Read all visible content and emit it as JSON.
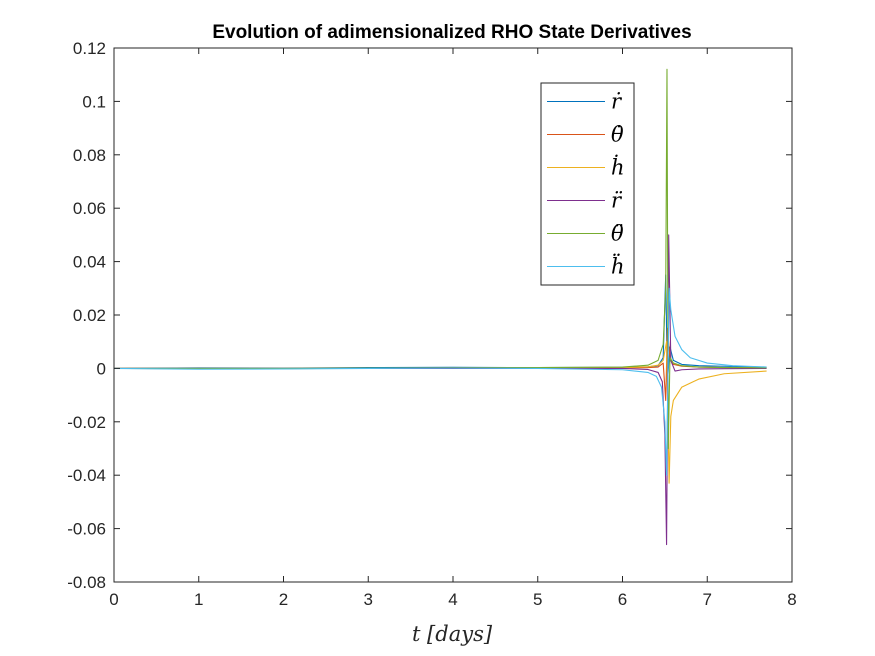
{
  "chart_data": {
    "type": "line",
    "title": "Evolution of adimensionalized RHO State Derivatives",
    "xlabel": "t [days]",
    "ylabel": "",
    "xlim": [
      0,
      8
    ],
    "ylim": [
      -0.08,
      0.12
    ],
    "xticks": [
      0,
      1,
      2,
      3,
      4,
      5,
      6,
      7,
      8
    ],
    "yticks": [
      -0.08,
      -0.06,
      -0.04,
      -0.02,
      0,
      0.02,
      0.04,
      0.06,
      0.08,
      0.1,
      0.12
    ],
    "xtick_labels": [
      "0",
      "1",
      "2",
      "3",
      "4",
      "5",
      "6",
      "7",
      "8"
    ],
    "ytick_labels": [
      "-0.08",
      "-0.06",
      "-0.04",
      "-0.02",
      "0",
      "0.02",
      "0.04",
      "0.06",
      "0.08",
      "0.1",
      "0.12"
    ],
    "grid": false,
    "legend_position": "top-right",
    "series": [
      {
        "name": "ṙ",
        "color": "#0072BD",
        "x": [
          0,
          1,
          2,
          3,
          4,
          5,
          6.0,
          6.3,
          6.42,
          6.48,
          6.51,
          6.53,
          6.56,
          6.6,
          6.7,
          6.9,
          7.2,
          7.7
        ],
        "y": [
          0,
          0.0002,
          0.0001,
          0.0003,
          0.0004,
          0.0003,
          0.0004,
          0.0006,
          0.001,
          0.004,
          0.035,
          -0.005,
          0.008,
          0.003,
          0.0015,
          0.001,
          0.0008,
          0.0005
        ]
      },
      {
        "name": "θ̇",
        "color": "#D95319",
        "x": [
          0,
          1,
          2,
          3,
          4,
          5,
          6.0,
          6.3,
          6.42,
          6.48,
          6.51,
          6.53,
          6.56,
          6.6,
          6.7,
          6.9,
          7.2,
          7.7
        ],
        "y": [
          0,
          -0.0001,
          -0.0001,
          0.0001,
          0.0002,
          0.0002,
          0.0002,
          0.0003,
          0.0005,
          0.002,
          -0.012,
          0.015,
          0.004,
          0.0015,
          0.0008,
          0.0005,
          0.0003,
          0.0002
        ]
      },
      {
        "name": "ḣ",
        "color": "#EDB120",
        "x": [
          0,
          1,
          2,
          3,
          4,
          5,
          6.0,
          6.3,
          6.42,
          6.48,
          6.52,
          6.55,
          6.57,
          6.6,
          6.7,
          6.9,
          7.2,
          7.7
        ],
        "y": [
          0,
          0,
          0,
          0.0001,
          0.0002,
          0.0002,
          0.0003,
          0.0006,
          0.0012,
          0.003,
          0.01,
          -0.043,
          -0.018,
          -0.012,
          -0.007,
          -0.004,
          -0.002,
          -0.001
        ]
      },
      {
        "name": "r̈",
        "color": "#7E2F8E",
        "x": [
          0,
          1,
          2,
          3,
          4,
          5,
          6.0,
          6.3,
          6.42,
          6.47,
          6.5,
          6.52,
          6.545,
          6.57,
          6.62,
          6.7,
          6.9,
          7.2,
          7.7
        ],
        "y": [
          0,
          0,
          0,
          0,
          0,
          0,
          0,
          -0.0004,
          -0.0015,
          -0.005,
          -0.025,
          -0.066,
          0.05,
          0.003,
          -0.001,
          -0.0005,
          -0.0002,
          -0.0001,
          0
        ]
      },
      {
        "name": "θ̈",
        "color": "#77AC30",
        "x": [
          0,
          1,
          2,
          3,
          4,
          5,
          6.0,
          6.3,
          6.42,
          6.48,
          6.51,
          6.525,
          6.54,
          6.56,
          6.6,
          6.7,
          6.9,
          7.2,
          7.7
        ],
        "y": [
          0,
          0,
          0,
          0.0001,
          0.0002,
          0.0003,
          0.0005,
          0.0012,
          0.003,
          0.009,
          0.03,
          0.112,
          -0.03,
          0.004,
          0.002,
          0.001,
          0.0005,
          0.0003,
          0.0002
        ]
      },
      {
        "name": "ḧ",
        "color": "#4DBEEE",
        "x": [
          0,
          1,
          2,
          3,
          4,
          5,
          6.0,
          6.3,
          6.4,
          6.46,
          6.5,
          6.52,
          6.55,
          6.57,
          6.62,
          6.7,
          6.8,
          7.0,
          7.3,
          7.7
        ],
        "y": [
          0,
          -0.0003,
          -0.0002,
          0,
          0.0001,
          0,
          -0.0005,
          -0.0015,
          -0.003,
          -0.007,
          -0.02,
          -0.04,
          0.03,
          0.022,
          0.012,
          0.007,
          0.004,
          0.002,
          0.001,
          0.0005
        ]
      }
    ]
  }
}
